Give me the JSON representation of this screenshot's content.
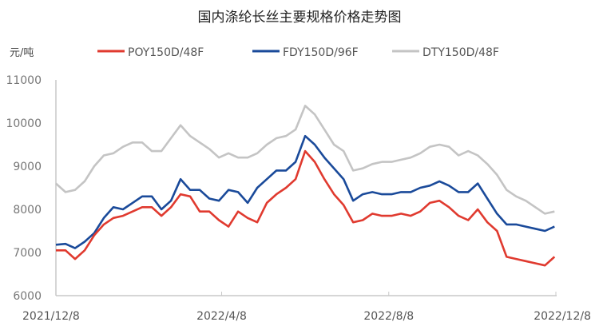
{
  "chart_data": {
    "type": "line",
    "title": "国内涤纶长丝主要规格价格走势图",
    "ylabel": "元/吨",
    "xlabel": "",
    "ylim": [
      6000,
      11000
    ],
    "yticks": [
      "6000",
      "7000",
      "8000",
      "9000",
      "10000",
      "11000"
    ],
    "xlim": [
      "2021-12-08",
      "2022-12-08"
    ],
    "xticks": [
      {
        "date": "2021-12-08",
        "label": "2021/12/8"
      },
      {
        "date": "2022-04-08",
        "label": "2022/4/8"
      },
      {
        "date": "2022-08-08",
        "label": "2022/8/8"
      },
      {
        "date": "2022-12-08",
        "label": "2022/12/8"
      }
    ],
    "grid": false,
    "legend": "top",
    "x": [
      "2021-12-08",
      "2021-12-15",
      "2021-12-22",
      "2021-12-29",
      "2022-01-05",
      "2022-01-12",
      "2022-01-19",
      "2022-01-26",
      "2022-02-02",
      "2022-02-09",
      "2022-02-16",
      "2022-02-23",
      "2022-03-02",
      "2022-03-09",
      "2022-03-16",
      "2022-03-23",
      "2022-03-30",
      "2022-04-06",
      "2022-04-13",
      "2022-04-20",
      "2022-04-27",
      "2022-05-04",
      "2022-05-11",
      "2022-05-18",
      "2022-05-25",
      "2022-06-01",
      "2022-06-08",
      "2022-06-15",
      "2022-06-22",
      "2022-06-29",
      "2022-07-06",
      "2022-07-13",
      "2022-07-20",
      "2022-07-27",
      "2022-08-03",
      "2022-08-10",
      "2022-08-17",
      "2022-08-24",
      "2022-08-31",
      "2022-09-07",
      "2022-09-14",
      "2022-09-21",
      "2022-09-28",
      "2022-10-05",
      "2022-10-12",
      "2022-10-19",
      "2022-10-26",
      "2022-11-02",
      "2022-11-09",
      "2022-11-16",
      "2022-11-23",
      "2022-11-30",
      "2022-12-07"
    ],
    "series": [
      {
        "name": "POY150D/48F",
        "color": "#e03a2f",
        "values": [
          7050,
          7050,
          6850,
          7050,
          7400,
          7650,
          7800,
          7850,
          7950,
          8050,
          8050,
          7850,
          8050,
          8350,
          8300,
          7950,
          7950,
          7750,
          7600,
          7950,
          7800,
          7700,
          8150,
          8350,
          8500,
          8700,
          9350,
          9100,
          8700,
          8350,
          8100,
          7700,
          7750,
          7900,
          7850,
          7850,
          7900,
          7850,
          7950,
          8150,
          8200,
          8050,
          7850,
          7750,
          8000,
          7700,
          7500,
          6900,
          6850,
          6800,
          6750,
          6700,
          6900
        ]
      },
      {
        "name": "FDY150D/96F",
        "color": "#1a4a9a",
        "values": [
          7180,
          7200,
          7100,
          7250,
          7450,
          7800,
          8050,
          8000,
          8150,
          8300,
          8300,
          8000,
          8200,
          8700,
          8450,
          8450,
          8250,
          8200,
          8450,
          8400,
          8150,
          8500,
          8700,
          8900,
          8900,
          9100,
          9700,
          9500,
          9200,
          8950,
          8700,
          8200,
          8350,
          8400,
          8350,
          8350,
          8400,
          8400,
          8500,
          8550,
          8650,
          8550,
          8400,
          8400,
          8600,
          8250,
          7900,
          7650,
          7650,
          7600,
          7550,
          7500,
          7600
        ]
      },
      {
        "name": "DTY150D/48F",
        "color": "#c4c4c4",
        "values": [
          8600,
          8400,
          8450,
          8650,
          9000,
          9250,
          9300,
          9450,
          9550,
          9550,
          9350,
          9350,
          9650,
          9950,
          9700,
          9550,
          9400,
          9200,
          9300,
          9200,
          9200,
          9300,
          9500,
          9650,
          9700,
          9850,
          10400,
          10200,
          9850,
          9500,
          9350,
          8900,
          8950,
          9050,
          9100,
          9100,
          9150,
          9200,
          9300,
          9450,
          9500,
          9450,
          9250,
          9350,
          9250,
          9050,
          8800,
          8450,
          8300,
          8200,
          8050,
          7900,
          7950
        ]
      }
    ]
  }
}
